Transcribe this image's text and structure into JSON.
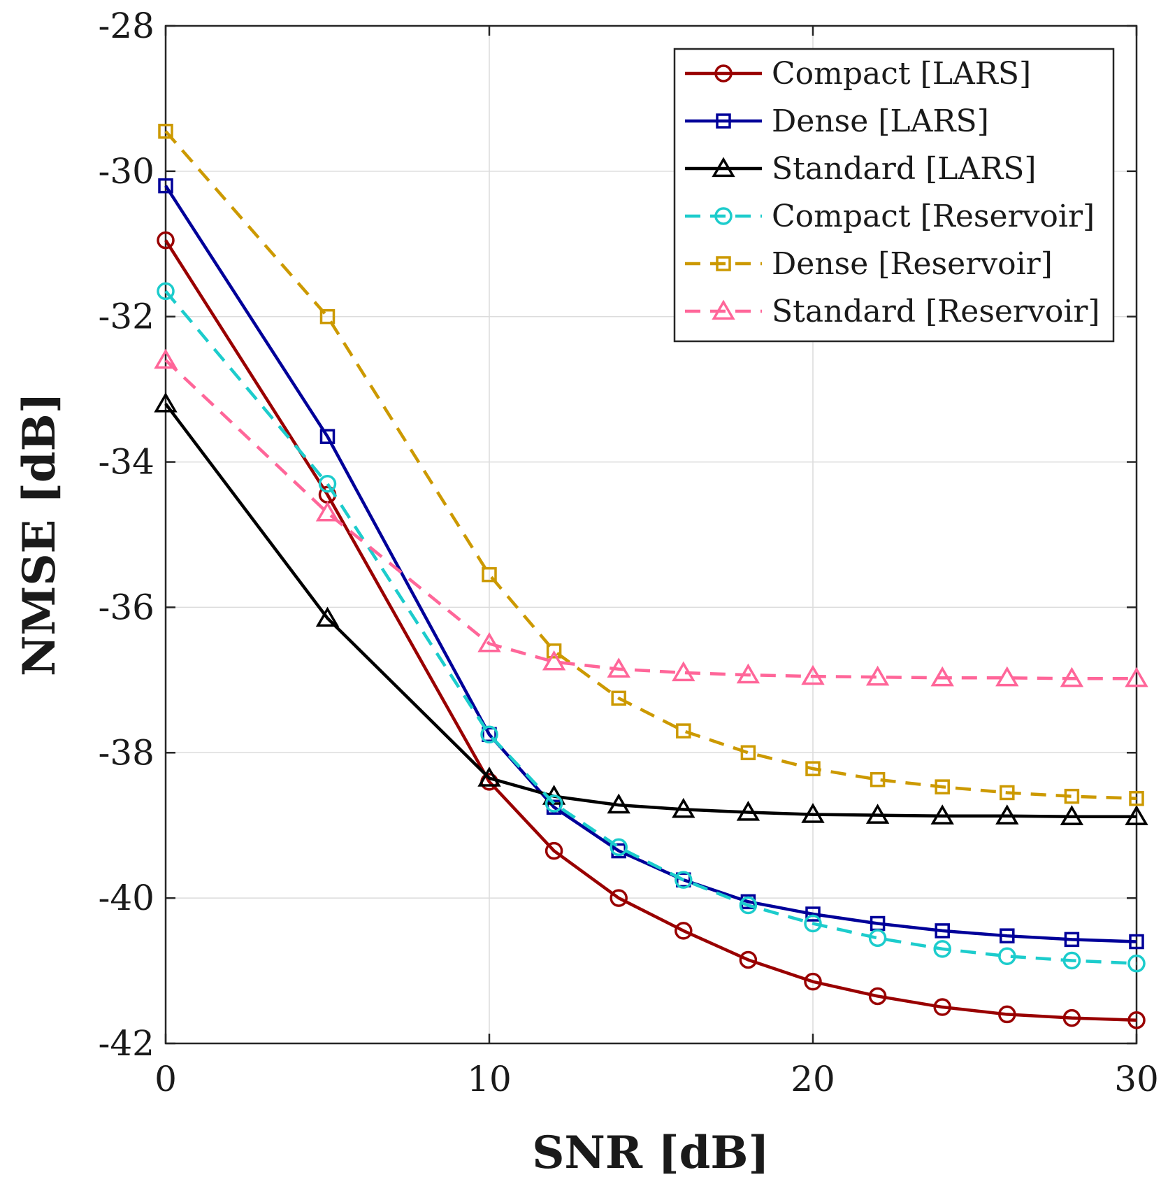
{
  "chart_data": {
    "type": "line",
    "xlabel": "SNR [dB]",
    "ylabel": "NMSE [dB]",
    "xlim": [
      0,
      30
    ],
    "ylim": [
      -42,
      -28
    ],
    "xticks": [
      0,
      10,
      20,
      30
    ],
    "xtick_labels": [
      "0",
      "10",
      "20",
      "30"
    ],
    "yticks": [
      -42,
      -40,
      -38,
      -36,
      -34,
      -32,
      -30,
      -28
    ],
    "ytick_labels": [
      "-42",
      "-40",
      "-38",
      "-36",
      "-34",
      "-32",
      "-30",
      "-28"
    ],
    "grid": true,
    "legend_position": "top-right",
    "series": [
      {
        "name": "Compact [LARS]",
        "color": "#990000",
        "line": "solid",
        "marker": "circle",
        "x": [
          0,
          5,
          10,
          12,
          14,
          16,
          18,
          20,
          22,
          24,
          26,
          28,
          30
        ],
        "y": [
          -30.95,
          -34.45,
          -38.4,
          -39.35,
          -40.0,
          -40.45,
          -40.85,
          -41.15,
          -41.35,
          -41.5,
          -41.6,
          -41.65,
          -41.68
        ]
      },
      {
        "name": "Dense [LARS]",
        "color": "#000099",
        "line": "solid",
        "marker": "square",
        "x": [
          0,
          5,
          10,
          12,
          14,
          16,
          18,
          20,
          22,
          24,
          26,
          28,
          30
        ],
        "y": [
          -30.2,
          -33.65,
          -37.75,
          -38.75,
          -39.35,
          -39.75,
          -40.05,
          -40.22,
          -40.35,
          -40.45,
          -40.52,
          -40.57,
          -40.6
        ]
      },
      {
        "name": "Standard [LARS]",
        "color": "#000000",
        "line": "solid",
        "marker": "triangle",
        "x": [
          0,
          5,
          10,
          12,
          14,
          16,
          18,
          20,
          22,
          24,
          26,
          28,
          30
        ],
        "y": [
          -33.2,
          -36.15,
          -38.35,
          -38.6,
          -38.72,
          -38.78,
          -38.82,
          -38.85,
          -38.86,
          -38.87,
          -38.87,
          -38.88,
          -38.88
        ]
      },
      {
        "name": "Compact [Reservoir]",
        "color": "#1ccccc",
        "line": "dashed",
        "marker": "circle",
        "x": [
          0,
          5,
          10,
          12,
          14,
          16,
          18,
          20,
          22,
          24,
          26,
          28,
          30
        ],
        "y": [
          -31.65,
          -34.3,
          -37.75,
          -38.7,
          -39.3,
          -39.75,
          -40.1,
          -40.35,
          -40.55,
          -40.7,
          -40.8,
          -40.86,
          -40.9
        ]
      },
      {
        "name": "Dense [Reservoir]",
        "color": "#cc9900",
        "line": "dashed",
        "marker": "square",
        "x": [
          0,
          5,
          10,
          12,
          14,
          16,
          18,
          20,
          22,
          24,
          26,
          28,
          30
        ],
        "y": [
          -29.45,
          -32.0,
          -35.55,
          -36.6,
          -37.25,
          -37.7,
          -38.0,
          -38.22,
          -38.37,
          -38.47,
          -38.55,
          -38.6,
          -38.63
        ]
      },
      {
        "name": "Standard [Reservoir]",
        "color": "#ff6699",
        "line": "dashed",
        "marker": "triangle",
        "x": [
          0,
          5,
          10,
          12,
          14,
          16,
          18,
          20,
          22,
          24,
          26,
          28,
          30
        ],
        "y": [
          -32.6,
          -34.7,
          -36.5,
          -36.75,
          -36.85,
          -36.9,
          -36.93,
          -36.95,
          -36.96,
          -36.97,
          -36.97,
          -36.98,
          -36.98
        ]
      }
    ]
  }
}
